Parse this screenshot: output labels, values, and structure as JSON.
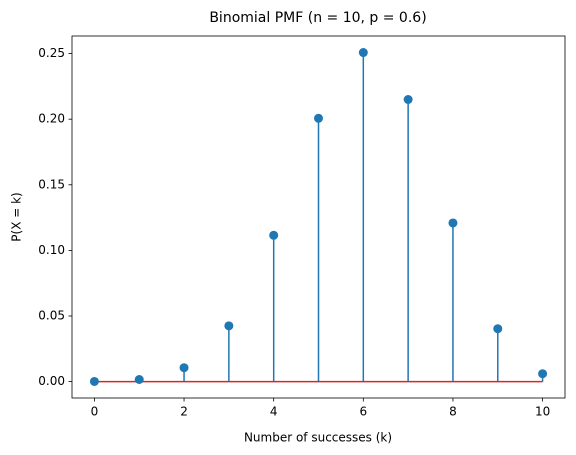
{
  "chart_data": {
    "type": "stem",
    "title": "Binomial PMF (n = 10, p = 0.6)",
    "x_label": "Number of successes (k)",
    "y_label": "P(X = k)",
    "x": [
      0,
      1,
      2,
      3,
      4,
      5,
      6,
      7,
      8,
      9,
      10
    ],
    "values": [
      0.0001,
      0.0016,
      0.0106,
      0.0425,
      0.1115,
      0.2007,
      0.2508,
      0.215,
      0.1209,
      0.0403,
      0.006
    ],
    "color": "#1f77b4",
    "baseline_color": "#d62728",
    "xlim": [
      -0.5,
      10.5
    ],
    "ylim": [
      -0.0125,
      0.2634
    ],
    "xticks": [
      0,
      2,
      4,
      6,
      8,
      10
    ],
    "yticks": [
      {
        "value": 0,
        "label": "0.00"
      },
      {
        "value": 0.05,
        "label": "0.05"
      },
      {
        "value": 0.1,
        "label": "0.10"
      },
      {
        "value": 0.15,
        "label": "0.15"
      },
      {
        "value": 0.2,
        "label": "0.20"
      },
      {
        "value": 0.25,
        "label": "0.25"
      }
    ]
  }
}
